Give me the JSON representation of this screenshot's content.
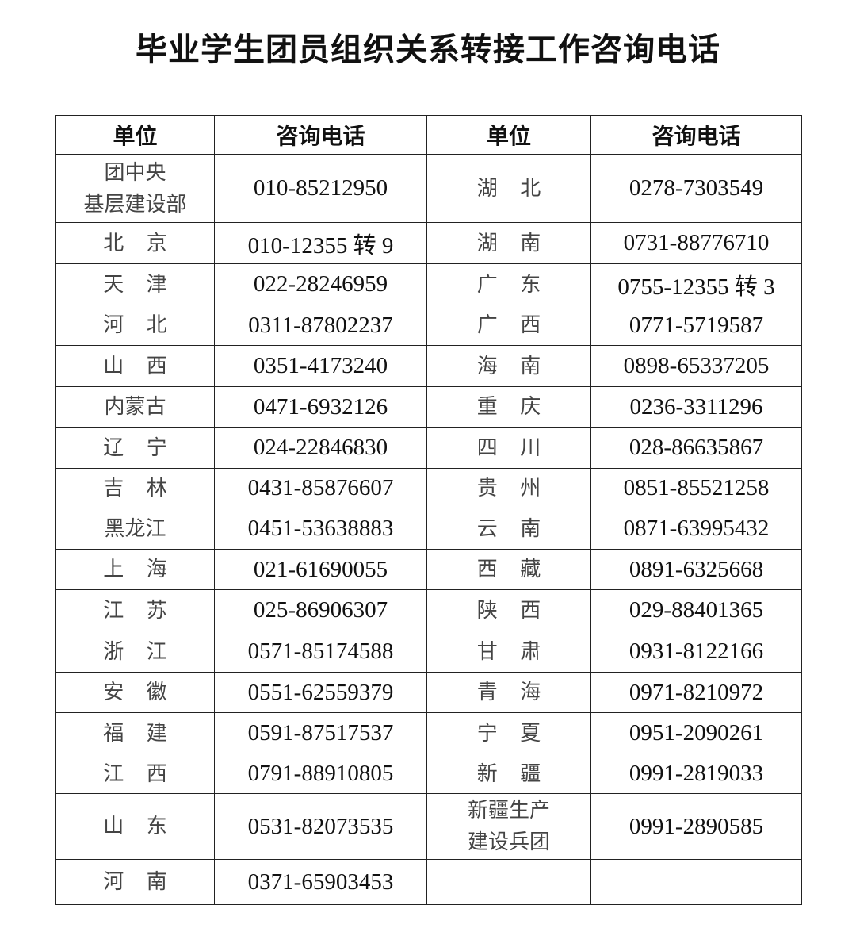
{
  "title": "毕业学生团员组织关系转接工作咨询电话",
  "headers": [
    "单位",
    "咨询电话",
    "单位",
    "咨询电话"
  ],
  "rows": [
    {
      "unit_left": "团中央\n基层建设部",
      "phone_left": "010-85212950",
      "unit_right": "湖北",
      "phone_right": "0278-7303549"
    },
    {
      "unit_left": "北京",
      "phone_left": "010-12355 转 9",
      "unit_right": "湖南",
      "phone_right": "0731-88776710"
    },
    {
      "unit_left": "天津",
      "phone_left": "022-28246959",
      "unit_right": "广东",
      "phone_right": "0755-12355 转 3"
    },
    {
      "unit_left": "河北",
      "phone_left": "0311-87802237",
      "unit_right": "广西",
      "phone_right": "0771-5719587"
    },
    {
      "unit_left": "山西",
      "phone_left": "0351-4173240",
      "unit_right": "海南",
      "phone_right": "0898-65337205"
    },
    {
      "unit_left": "内蒙古",
      "phone_left": "0471-6932126",
      "unit_right": "重庆",
      "phone_right": "0236-3311296"
    },
    {
      "unit_left": "辽宁",
      "phone_left": "024-22846830",
      "unit_right": "四川",
      "phone_right": "028-86635867"
    },
    {
      "unit_left": "吉林",
      "phone_left": "0431-85876607",
      "unit_right": "贵州",
      "phone_right": "0851-85521258"
    },
    {
      "unit_left": "黑龙江",
      "phone_left": "0451-53638883",
      "unit_right": "云南",
      "phone_right": "0871-63995432"
    },
    {
      "unit_left": "上海",
      "phone_left": "021-61690055",
      "unit_right": "西藏",
      "phone_right": "0891-6325668"
    },
    {
      "unit_left": "江苏",
      "phone_left": "025-86906307",
      "unit_right": "陕西",
      "phone_right": "029-88401365"
    },
    {
      "unit_left": "浙江",
      "phone_left": "0571-85174588",
      "unit_right": "甘肃",
      "phone_right": "0931-8122166"
    },
    {
      "unit_left": "安徽",
      "phone_left": "0551-62559379",
      "unit_right": "青海",
      "phone_right": "0971-8210972"
    },
    {
      "unit_left": "福建",
      "phone_left": "0591-87517537",
      "unit_right": "宁夏",
      "phone_right": "0951-2090261"
    },
    {
      "unit_left": "江西",
      "phone_left": "0791-88910805",
      "unit_right": "新疆",
      "phone_right": "0991-2819033"
    },
    {
      "unit_left": "山东",
      "phone_left": "0531-82073535",
      "unit_right": "新疆生产\n建设兵团",
      "phone_right": "0991-2890585"
    },
    {
      "unit_left": "河南",
      "phone_left": "0371-65903453",
      "unit_right": "",
      "phone_right": ""
    }
  ]
}
